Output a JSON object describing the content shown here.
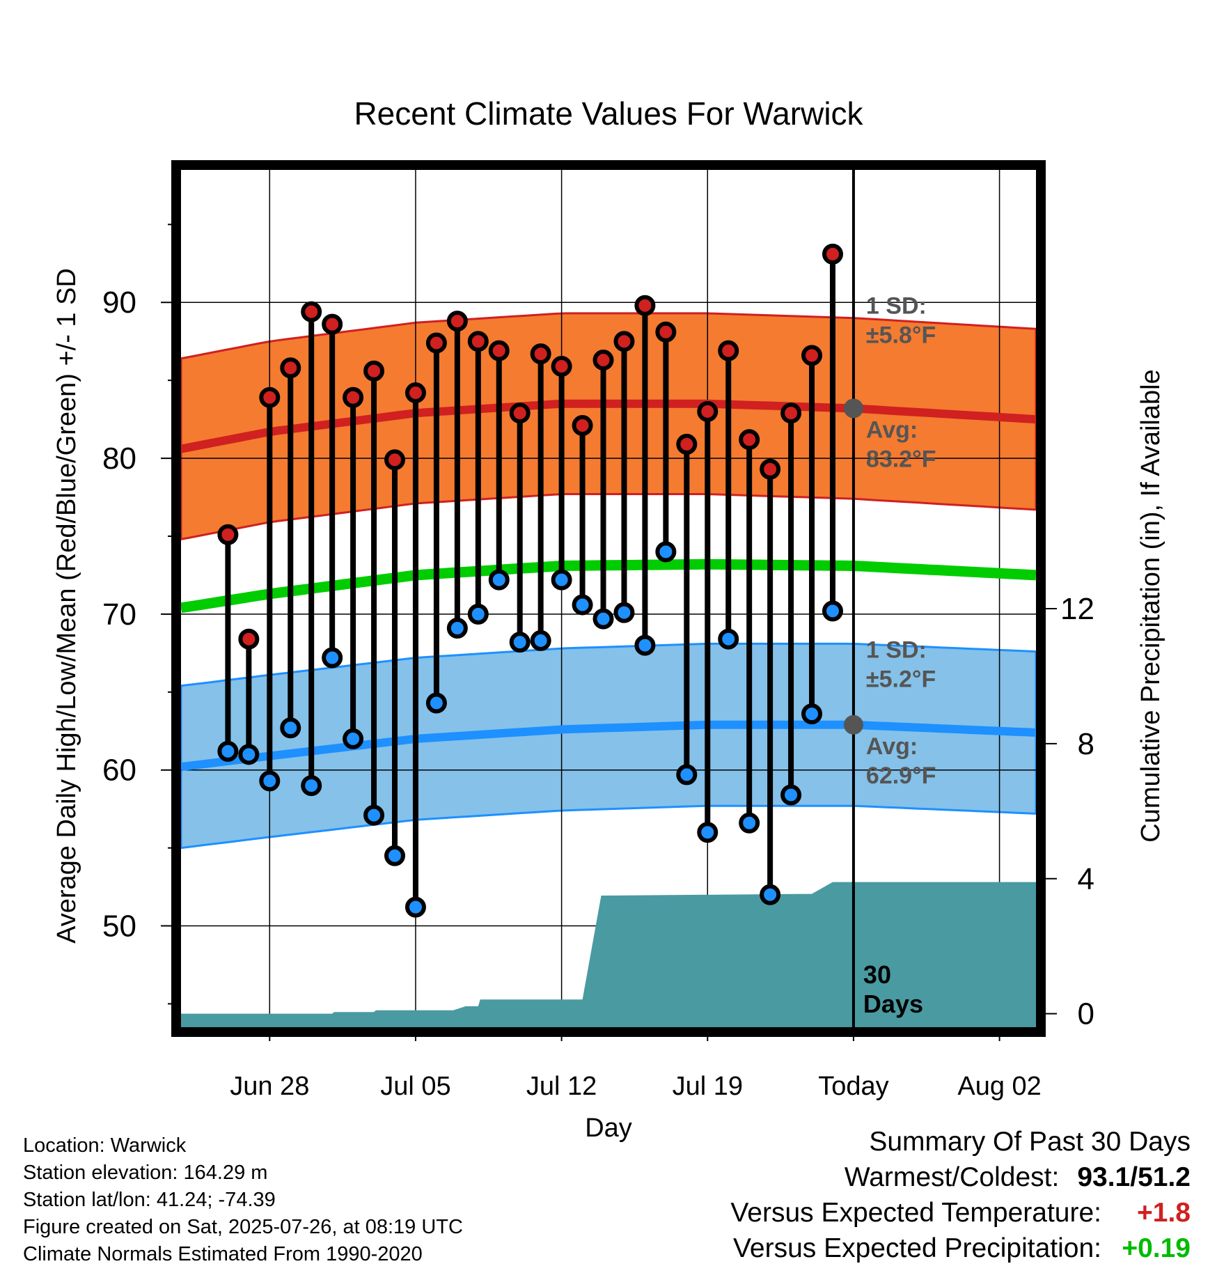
{
  "chart_data": {
    "type": "line",
    "title": "Recent Climate Values For Warwick",
    "xlabel": "Day",
    "ylabel": "Average Daily High/Low/Mean (Red/Blue/Green) +/- 1 SD",
    "y2label": "Cumulative Precipitation (in), If Available",
    "xlim": [
      -4.25,
      36.75
    ],
    "ylim": [
      43.5,
      98.5
    ],
    "y2lim": [
      -0.4,
      25.0
    ],
    "x_ticks": [
      {
        "x": 0,
        "label": "Jun 28"
      },
      {
        "x": 7,
        "label": "Jul 05"
      },
      {
        "x": 14,
        "label": "Jul 12"
      },
      {
        "x": 21,
        "label": "Jul 19"
      },
      {
        "x": 28,
        "label": "Today"
      },
      {
        "x": 35,
        "label": "Aug 02"
      }
    ],
    "y_ticks": [
      50,
      60,
      70,
      80,
      90
    ],
    "y2_ticks": [
      0,
      4,
      8,
      12
    ],
    "grid": true,
    "today_x": 28,
    "today_label": "30\nDays",
    "colors": {
      "high": "#d02020",
      "low": "#1e90ff",
      "mean": "#00cc00",
      "high_band": "#f47b30",
      "low_band": "#85c1e9",
      "precip": "#4a9aa2",
      "today_dot": "#555555",
      "annotation": "#555555"
    },
    "normals": {
      "x": [
        -4.25,
        0,
        7,
        14,
        21,
        28,
        36.75
      ],
      "high": [
        80.6,
        81.7,
        82.9,
        83.5,
        83.5,
        83.2,
        82.5
      ],
      "low": [
        60.2,
        60.9,
        62.0,
        62.6,
        62.9,
        62.9,
        62.4
      ],
      "mean": [
        70.4,
        71.3,
        72.5,
        73.1,
        73.2,
        73.1,
        72.5
      ],
      "high_sd": 5.8,
      "low_sd": 5.2
    },
    "annotations": {
      "high_sd": "1 SD:\n±5.8°F",
      "high_avg": "Avg:\n83.2°F",
      "low_sd": "1 SD:\n±5.2°F",
      "low_avg": "Avg:\n62.9°F"
    },
    "series": [
      {
        "name": "High",
        "x": [
          -2,
          -1,
          0,
          1,
          2,
          3,
          4,
          5,
          6,
          7,
          8,
          9,
          10,
          11,
          12,
          13,
          14,
          15,
          16,
          17,
          18,
          19,
          20,
          21,
          22,
          23,
          24,
          25,
          26,
          27
        ],
        "values": [
          75.1,
          68.4,
          83.9,
          85.8,
          89.4,
          88.6,
          83.9,
          85.6,
          79.9,
          84.2,
          87.4,
          88.8,
          87.5,
          86.9,
          82.9,
          86.7,
          85.9,
          82.1,
          86.3,
          87.5,
          89.8,
          88.1,
          80.9,
          83.0,
          86.9,
          81.2,
          79.3,
          82.9,
          86.6,
          93.1
        ]
      },
      {
        "name": "Low",
        "x": [
          -2,
          -1,
          0,
          1,
          2,
          3,
          4,
          5,
          6,
          7,
          8,
          9,
          10,
          11,
          12,
          13,
          14,
          15,
          16,
          17,
          18,
          19,
          20,
          21,
          22,
          23,
          24,
          25,
          26,
          27
        ],
        "values": [
          61.2,
          61.0,
          59.3,
          62.7,
          59.0,
          67.2,
          62.0,
          57.1,
          54.5,
          51.2,
          64.3,
          69.1,
          70.0,
          72.2,
          68.2,
          68.3,
          72.2,
          70.6,
          69.7,
          70.1,
          68.0,
          74.0,
          59.7,
          56.0,
          68.4,
          56.6,
          52.0,
          58.4,
          63.6,
          70.2
        ]
      },
      {
        "name": "Precip",
        "x": [
          -4.25,
          3,
          3.1,
          5,
          5.1,
          8.8,
          9.4,
          10,
          10.1,
          15,
          15.9,
          16.1,
          26,
          27,
          36.75
        ],
        "values": [
          0,
          0,
          0.05,
          0.05,
          0.1,
          0.1,
          0.22,
          0.22,
          0.42,
          0.42,
          3.5,
          3.5,
          3.55,
          3.9,
          3.9
        ]
      }
    ]
  },
  "footer": {
    "location": "Location: Warwick",
    "elevation": "Station elevation: 164.29 m",
    "latlon": "Station lat/lon: 41.24; -74.39",
    "created": "Figure created on Sat, 2025-07-26, at 08:19 UTC",
    "normals": "Climate Normals Estimated From 1990-2020"
  },
  "summary": {
    "title": "Summary Of Past 30 Days",
    "warmest_label": "Warmest/Coldest:",
    "warmest_value": "93.1/51.2",
    "temp_label": "Versus Expected Temperature:",
    "temp_value": "+1.8",
    "temp_color": "#d02020",
    "precip_label": "Versus Expected Precipitation:",
    "precip_value": "+0.19",
    "precip_color": "#00bb00"
  }
}
